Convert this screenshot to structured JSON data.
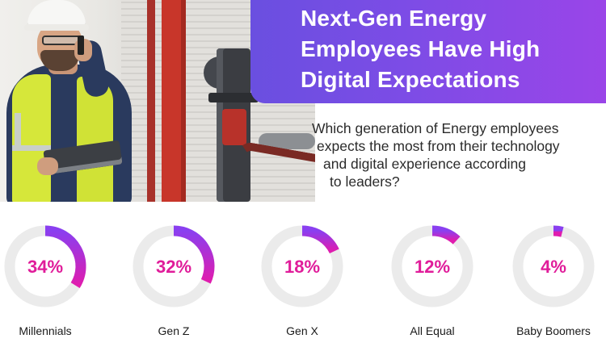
{
  "banner": {
    "title": "Next-Gen Energy\nEmployees Have High\nDigital Expectations",
    "gradient_start": "#6a4fe0",
    "gradient_end": "#9a45e8"
  },
  "question_lines": [
    "Which generation of Energy employees",
    "expects the most from their technology",
    "and digital experience according",
    "to leaders?"
  ],
  "colors": {
    "track": "#ebebeb",
    "arc_start": "#8a3ff0",
    "arc_end": "#e01cae",
    "value_text": "#e01c9a"
  },
  "chart_data": {
    "type": "donut",
    "title": "",
    "categories": [
      "Millennials",
      "Gen Z",
      "Gen X",
      "All Equal",
      "Baby Boomers"
    ],
    "values": [
      34,
      32,
      18,
      12,
      4
    ],
    "value_labels": [
      "34%",
      "32%",
      "18%",
      "12%",
      "4%"
    ],
    "unit": "%",
    "max": 100
  }
}
